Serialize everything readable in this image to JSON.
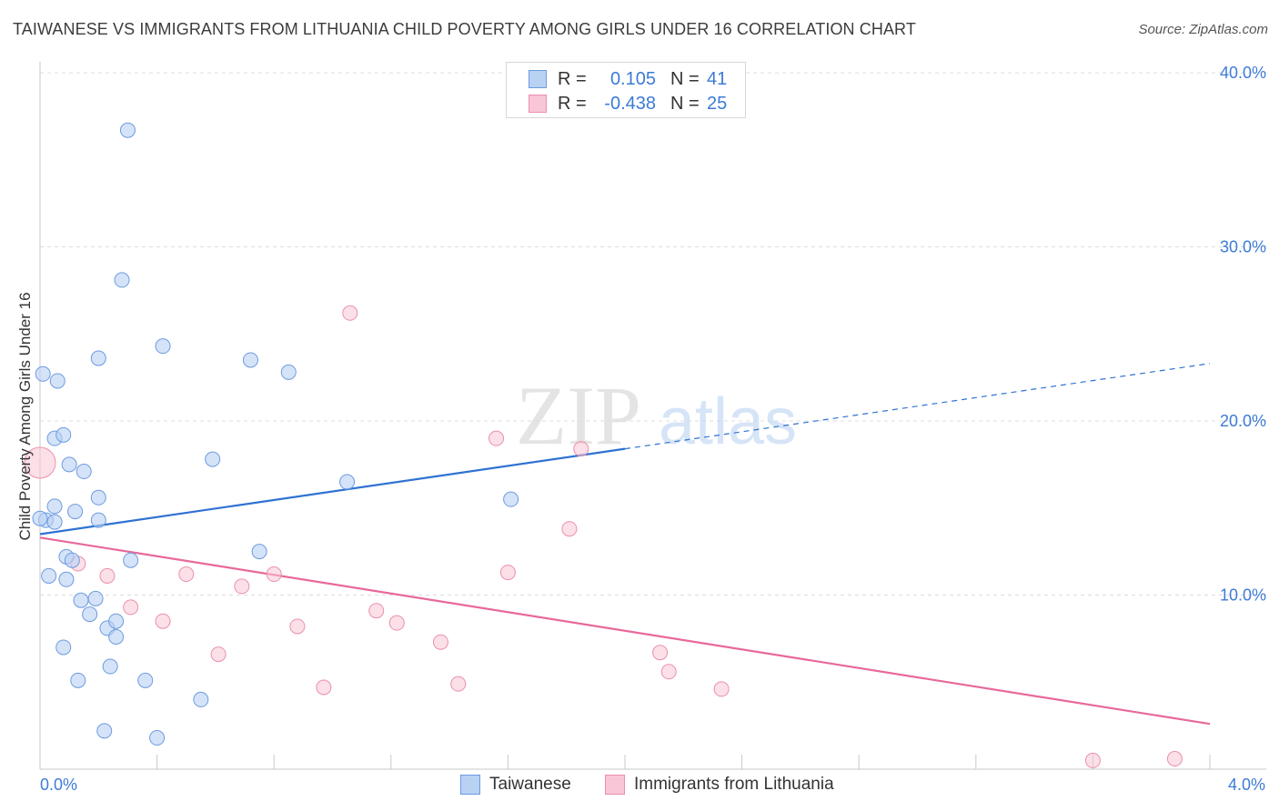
{
  "title": "TAIWANESE VS IMMIGRANTS FROM LITHUANIA CHILD POVERTY AMONG GIRLS UNDER 16 CORRELATION CHART",
  "source": "Source: ZipAtlas.com",
  "watermark": {
    "zip": "ZIP",
    "atlas": "atlas"
  },
  "legend": {
    "rows": [
      {
        "r_label": "R =",
        "r_value": "0.105",
        "n_label": "N =",
        "n_value": "41"
      },
      {
        "r_label": "R =",
        "r_value": "-0.438",
        "n_label": "N =",
        "n_value": "25"
      }
    ]
  },
  "colors": {
    "taiwanese_fill": "#b9d1f3",
    "taiwanese_stroke": "#6c9be0",
    "taiwanese_line": "#2f72d2",
    "lithuania_fill": "#f8c6d6",
    "lithuania_stroke": "#ec8fac",
    "lithuania_line": "#e8689a",
    "axis_text": "#3d7bd6"
  },
  "chart_data": {
    "type": "scatter",
    "title": "TAIWANESE VS IMMIGRANTS FROM LITHUANIA CHILD POVERTY AMONG GIRLS UNDER 16 CORRELATION CHART",
    "xlabel": "",
    "ylabel": "Child Poverty Among Girls Under 16",
    "xlim": [
      0,
      4.0
    ],
    "ylim": [
      0,
      40
    ],
    "x_unit": "%",
    "y_unit": "%",
    "x_tick_labels": [
      "0.0%",
      "4.0%"
    ],
    "y_ticks": [
      10,
      20,
      30,
      40
    ],
    "y_tick_labels": [
      "10.0%",
      "20.0%",
      "30.0%",
      "40.0%"
    ],
    "grid": true,
    "legend_position": "top-center",
    "series": [
      {
        "name": "Taiwanese",
        "points": [
          [
            0.01,
            22.7
          ],
          [
            0.06,
            22.3
          ],
          [
            0.05,
            19.0
          ],
          [
            0.08,
            19.2
          ],
          [
            0.2,
            23.6
          ],
          [
            0.3,
            36.7
          ],
          [
            0.28,
            28.1
          ],
          [
            0.42,
            24.3
          ],
          [
            0.72,
            23.5
          ],
          [
            0.85,
            22.8
          ],
          [
            0.1,
            17.5
          ],
          [
            0.15,
            17.1
          ],
          [
            0.59,
            17.8
          ],
          [
            0.05,
            15.1
          ],
          [
            0.2,
            15.6
          ],
          [
            0.02,
            14.3
          ],
          [
            0.05,
            14.2
          ],
          [
            0.12,
            14.8
          ],
          [
            0.2,
            14.3
          ],
          [
            0.09,
            12.2
          ],
          [
            0.11,
            12.0
          ],
          [
            0.31,
            12.0
          ],
          [
            0.75,
            12.5
          ],
          [
            1.05,
            16.5
          ],
          [
            1.61,
            15.5
          ],
          [
            0.03,
            11.1
          ],
          [
            0.09,
            10.9
          ],
          [
            0.14,
            9.7
          ],
          [
            0.19,
            9.8
          ],
          [
            0.17,
            8.9
          ],
          [
            0.23,
            8.1
          ],
          [
            0.26,
            8.5
          ],
          [
            0.26,
            7.6
          ],
          [
            0.08,
            7.0
          ],
          [
            0.24,
            5.9
          ],
          [
            0.13,
            5.1
          ],
          [
            0.36,
            5.1
          ],
          [
            0.55,
            4.0
          ],
          [
            0.22,
            2.2
          ],
          [
            0.4,
            1.8
          ],
          [
            0.0,
            14.4
          ]
        ],
        "trend": {
          "x": [
            0.0,
            2.0
          ],
          "y": [
            13.5,
            18.4
          ],
          "dashed_extension": {
            "x": [
              2.0,
              4.0
            ],
            "y": [
              18.4,
              23.3
            ]
          }
        }
      },
      {
        "name": "Immigrants from Lithuania",
        "points": [
          [
            0.0,
            17.6
          ],
          [
            1.06,
            26.2
          ],
          [
            1.56,
            19.0
          ],
          [
            1.85,
            18.4
          ],
          [
            1.81,
            13.8
          ],
          [
            0.13,
            11.8
          ],
          [
            0.23,
            11.1
          ],
          [
            0.5,
            11.2
          ],
          [
            0.69,
            10.5
          ],
          [
            0.8,
            11.2
          ],
          [
            1.6,
            11.3
          ],
          [
            0.31,
            9.3
          ],
          [
            0.42,
            8.5
          ],
          [
            0.88,
            8.2
          ],
          [
            1.15,
            9.1
          ],
          [
            1.22,
            8.4
          ],
          [
            1.37,
            7.3
          ],
          [
            0.61,
            6.6
          ],
          [
            2.12,
            6.7
          ],
          [
            2.15,
            5.6
          ],
          [
            0.97,
            4.7
          ],
          [
            1.43,
            4.9
          ],
          [
            2.33,
            4.6
          ],
          [
            3.6,
            0.5
          ],
          [
            3.88,
            0.6
          ]
        ],
        "trend": {
          "x": [
            0.0,
            4.0
          ],
          "y": [
            13.3,
            2.6
          ]
        }
      }
    ]
  }
}
